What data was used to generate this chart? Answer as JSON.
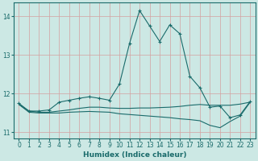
{
  "xlabel": "Humidex (Indice chaleur)",
  "bg_color": "#cce8e4",
  "grid_color": "#d4a0a0",
  "line_color": "#1a6b6b",
  "xlim": [
    -0.5,
    23.5
  ],
  "ylim": [
    10.85,
    14.35
  ],
  "yticks": [
    11,
    12,
    13,
    14
  ],
  "xticks": [
    0,
    1,
    2,
    3,
    4,
    5,
    6,
    7,
    8,
    9,
    10,
    11,
    12,
    13,
    14,
    15,
    16,
    17,
    18,
    19,
    20,
    21,
    22,
    23
  ],
  "line1_x": [
    0,
    1,
    2,
    3,
    4,
    5,
    6,
    7,
    8,
    9,
    10,
    11,
    12,
    13,
    14,
    15,
    16,
    17,
    18,
    19,
    20,
    21,
    22,
    23
  ],
  "line1_y": [
    11.75,
    11.55,
    11.55,
    11.58,
    11.78,
    11.83,
    11.88,
    11.92,
    11.88,
    11.83,
    12.25,
    13.3,
    14.15,
    13.75,
    13.35,
    13.78,
    13.55,
    12.45,
    12.15,
    11.65,
    11.68,
    11.38,
    11.45,
    11.8
  ],
  "line2_x": [
    0,
    1,
    2,
    3,
    4,
    5,
    6,
    7,
    8,
    9,
    10,
    11,
    12,
    13,
    14,
    15,
    16,
    17,
    18,
    19,
    20,
    21,
    22,
    23
  ],
  "line2_y": [
    11.72,
    11.55,
    11.52,
    11.52,
    11.55,
    11.58,
    11.62,
    11.65,
    11.65,
    11.63,
    11.62,
    11.62,
    11.63,
    11.63,
    11.64,
    11.65,
    11.67,
    11.7,
    11.72,
    11.7,
    11.7,
    11.7,
    11.73,
    11.78
  ],
  "line3_x": [
    0,
    1,
    2,
    3,
    4,
    5,
    6,
    7,
    8,
    9,
    10,
    11,
    12,
    13,
    14,
    15,
    16,
    17,
    18,
    19,
    20,
    21,
    22,
    23
  ],
  "line3_y": [
    11.72,
    11.52,
    11.5,
    11.5,
    11.5,
    11.52,
    11.53,
    11.54,
    11.53,
    11.52,
    11.48,
    11.46,
    11.44,
    11.42,
    11.4,
    11.38,
    11.35,
    11.33,
    11.3,
    11.18,
    11.12,
    11.28,
    11.42,
    11.78
  ]
}
